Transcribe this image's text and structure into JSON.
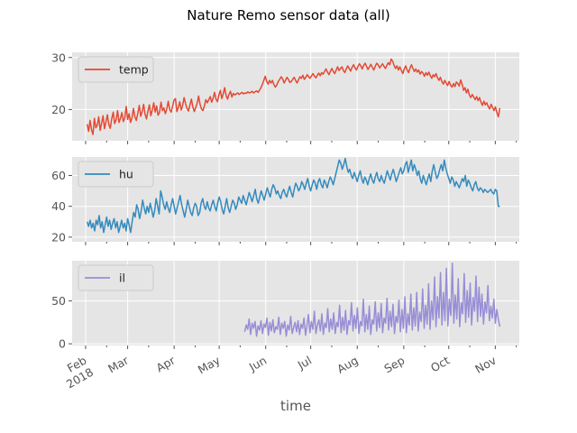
{
  "figure": {
    "title": "Nature Remo sensor data (all)",
    "xlabel": "time",
    "background": "#ffffff",
    "axes_face": "#e5e5e5",
    "grid_color": "#ffffff",
    "tick_color": "#555555"
  },
  "chart_data": {
    "type": "line",
    "title": "Nature Remo sensor data (all)",
    "xlabel": "time",
    "x_range": [
      "2018-01-23",
      "2018-11-17"
    ],
    "x_tick_labels": [
      {
        "date": "2018-02-01",
        "line1": "Feb",
        "line2": "2018"
      },
      {
        "date": "2018-03-01",
        "line1": "Mar",
        "line2": ""
      },
      {
        "date": "2018-04-01",
        "line1": "Apr",
        "line2": ""
      },
      {
        "date": "2018-05-01",
        "line1": "May",
        "line2": ""
      },
      {
        "date": "2018-06-01",
        "line1": "Jun",
        "line2": ""
      },
      {
        "date": "2018-07-01",
        "line1": "Jul",
        "line2": ""
      },
      {
        "date": "2018-08-01",
        "line1": "Aug",
        "line2": ""
      },
      {
        "date": "2018-09-01",
        "line1": "Sep",
        "line2": ""
      },
      {
        "date": "2018-10-01",
        "line1": "Oct",
        "line2": ""
      },
      {
        "date": "2018-11-01",
        "line1": "Nov",
        "line2": ""
      }
    ],
    "grid": true,
    "panels": [
      {
        "series_name": "temp",
        "color": "#e24a33",
        "ylim": [
          14,
          31
        ],
        "yticks": [
          20,
          30
        ],
        "legend": "upper-left",
        "start_date": "2018-02-02",
        "end_date": "2018-11-04",
        "daily_values": [
          17.2,
          15.8,
          17.9,
          16.1,
          15.2,
          18.3,
          16.5,
          17.0,
          18.6,
          16.0,
          17.4,
          18.8,
          16.3,
          17.6,
          19.0,
          17.1,
          16.4,
          18.2,
          19.5,
          17.3,
          18.0,
          19.8,
          17.5,
          18.3,
          19.4,
          17.7,
          18.4,
          20.6,
          18.1,
          19.2,
          17.5,
          18.4,
          20.2,
          18.6,
          17.9,
          19.3,
          20.8,
          18.7,
          19.6,
          21.0,
          19.1,
          18.2,
          19.7,
          20.9,
          18.8,
          19.9,
          21.3,
          19.5,
          20.7,
          18.9,
          19.4,
          21.4,
          19.8,
          20.3,
          19.2,
          20.1,
          21.6,
          20.0,
          19.5,
          20.6,
          21.8,
          22.1,
          19.6,
          20.4,
          21.5,
          19.9,
          20.8,
          22.3,
          21.1,
          20.2,
          19.7,
          20.9,
          22.0,
          20.5,
          19.6,
          20.4,
          21.2,
          22.6,
          21.0,
          20.1,
          19.8,
          20.7,
          21.9,
          21.3,
          21.9,
          22.5,
          21.4,
          22.2,
          23.3,
          22.0,
          21.5,
          22.8,
          23.7,
          22.1,
          23.0,
          24.2,
          22.7,
          22.0,
          22.9,
          23.5,
          22.4,
          23.1,
          22.8,
          23.0,
          23.2,
          22.9,
          23.1,
          23.3,
          23.0,
          23.2,
          23.1,
          23.4,
          23.2,
          23.3,
          23.5,
          23.2,
          23.4,
          23.6,
          23.3,
          23.7,
          24.2,
          24.8,
          25.6,
          26.4,
          25.4,
          24.9,
          25.6,
          25.1,
          25.6,
          24.8,
          24.3,
          24.7,
          25.4,
          25.8,
          26.3,
          25.9,
          25.1,
          25.6,
          26.2,
          25.8,
          25.2,
          25.4,
          25.8,
          26.2,
          25.6,
          25.1,
          25.7,
          26.3,
          26.0,
          26.6,
          25.8,
          26.2,
          26.7,
          26.3,
          26.0,
          26.5,
          26.9,
          26.4,
          26.1,
          26.6,
          27.0,
          26.5,
          27.1,
          26.8,
          27.3,
          27.8,
          27.2,
          26.7,
          27.4,
          27.9,
          27.3,
          26.9,
          27.6,
          28.2,
          27.5,
          27.9,
          28.2,
          27.5,
          27.1,
          27.8,
          28.4,
          27.9,
          27.4,
          28.1,
          28.6,
          28.0,
          27.6,
          28.3,
          28.8,
          28.4,
          27.8,
          28.5,
          28.9,
          28.3,
          27.7,
          28.2,
          28.7,
          28.1,
          27.6,
          28.3,
          28.9,
          28.6,
          28.0,
          28.4,
          28.8,
          28.3,
          27.9,
          28.5,
          29.0,
          28.6,
          29.7,
          29.3,
          28.5,
          27.9,
          28.4,
          27.6,
          28.2,
          27.5,
          26.9,
          27.8,
          28.4,
          27.6,
          27.1,
          28.0,
          28.6,
          27.9,
          27.3,
          27.8,
          27.2,
          27.6,
          26.8,
          27.3,
          27.0,
          26.4,
          27.1,
          26.6,
          27.2,
          26.5,
          26.0,
          26.7,
          26.3,
          26.9,
          26.1,
          25.6,
          26.2,
          25.4,
          24.9,
          25.6,
          25.1,
          24.6,
          25.4,
          24.7,
          24.3,
          25.0,
          24.4,
          25.3,
          25.0,
          24.5,
          25.7,
          24.9,
          23.7,
          24.2,
          23.2,
          23.9,
          22.8,
          22.3,
          22.9,
          22.4,
          21.9,
          22.5,
          21.7,
          22.3,
          21.4,
          20.8,
          21.6,
          20.9,
          21.3,
          20.6,
          20.1,
          21.0,
          20.4,
          19.8,
          20.5,
          19.4,
          18.6,
          20.3
        ]
      },
      {
        "series_name": "hu",
        "color": "#348abd",
        "ylim": [
          17,
          72
        ],
        "yticks": [
          20,
          40,
          60
        ],
        "legend": "upper-left",
        "start_date": "2018-02-02",
        "end_date": "2018-11-04",
        "daily_values": [
          30,
          27,
          31,
          26,
          29,
          24,
          31,
          28,
          34,
          26,
          30,
          23,
          28,
          33,
          27,
          31,
          25,
          29,
          32,
          26,
          30,
          23,
          27,
          31,
          26,
          29,
          24,
          32,
          28,
          23,
          30,
          36,
          33,
          41,
          38,
          32,
          37,
          44,
          39,
          35,
          40,
          36,
          42,
          38,
          33,
          37,
          45,
          40,
          35,
          50,
          46,
          41,
          38,
          43,
          39,
          36,
          41,
          45,
          40,
          35,
          39,
          43,
          47,
          41,
          37,
          33,
          38,
          44,
          40,
          36,
          34,
          39,
          42,
          40,
          34,
          36,
          42,
          45,
          40,
          38,
          43,
          39,
          37,
          41,
          44,
          40,
          37,
          42,
          46,
          43,
          38,
          35,
          40,
          45,
          39,
          36,
          40,
          44,
          42,
          38,
          41,
          46,
          44,
          42,
          47,
          44,
          41,
          45,
          49,
          46,
          43,
          47,
          51,
          45,
          42,
          46,
          50,
          47,
          44,
          48,
          52,
          49,
          46,
          51,
          54,
          52,
          48,
          50,
          47,
          45,
          49,
          51,
          48,
          46,
          50,
          53,
          49,
          46,
          51,
          55,
          53,
          50,
          52,
          56,
          54,
          51,
          55,
          58,
          53,
          50,
          54,
          57,
          55,
          51,
          56,
          58,
          54,
          52,
          57,
          55,
          52,
          56,
          59,
          57,
          54,
          58,
          62,
          66,
          70,
          68,
          64,
          67,
          71,
          66,
          62,
          64,
          60,
          58,
          62,
          59,
          56,
          60,
          63,
          58,
          55,
          59,
          57,
          54,
          58,
          61,
          57,
          55,
          59,
          62,
          58,
          56,
          60,
          57,
          55,
          59,
          63,
          60,
          57,
          61,
          64,
          60,
          56,
          59,
          62,
          65,
          61,
          63,
          67,
          69,
          62,
          66,
          70,
          63,
          67,
          64,
          60,
          63,
          58,
          55,
          60,
          57,
          54,
          58,
          61,
          56,
          63,
          67,
          62,
          58,
          60,
          64,
          67,
          63,
          70,
          65,
          61,
          58,
          55,
          59,
          57,
          53,
          56,
          54,
          52,
          55,
          58,
          56,
          60,
          53,
          57,
          55,
          52,
          50,
          54,
          56,
          52,
          50,
          52,
          51,
          49,
          51,
          50,
          49,
          50,
          51,
          49,
          48,
          51,
          50,
          40,
          40
        ]
      },
      {
        "series_name": "il",
        "color": "#988ed5",
        "ylim": [
          -2,
          97
        ],
        "yticks": [
          0,
          50
        ],
        "legend": "upper-left",
        "start_date": "2018-05-18",
        "end_date": "2018-11-04",
        "daily_values": [
          14,
          22,
          17,
          29,
          11,
          24,
          18,
          26,
          9,
          21,
          16,
          27,
          12,
          23,
          19,
          30,
          10,
          25,
          15,
          28,
          13,
          20,
          17,
          31,
          11,
          24,
          18,
          26,
          9,
          22,
          16,
          32,
          12,
          19,
          25,
          14,
          27,
          11,
          23,
          18,
          30,
          10,
          21,
          34,
          13,
          26,
          17,
          38,
          12,
          22,
          28,
          15,
          35,
          11,
          24,
          19,
          41,
          14,
          29,
          17,
          36,
          12,
          25,
          20,
          45,
          13,
          31,
          16,
          39,
          11,
          27,
          22,
          48,
          15,
          33,
          18,
          42,
          12,
          26,
          21,
          52,
          14,
          34,
          17,
          44,
          11,
          28,
          23,
          49,
          15,
          36,
          19,
          47,
          13,
          30,
          24,
          53,
          16,
          38,
          20,
          46,
          12,
          32,
          25,
          51,
          14,
          40,
          18,
          55,
          13,
          35,
          22,
          58,
          16,
          42,
          21,
          60,
          15,
          37,
          26,
          64,
          18,
          45,
          23,
          70,
          17,
          50,
          28,
          78,
          20,
          55,
          30,
          83,
          22,
          60,
          27,
          88,
          21,
          52,
          33,
          94,
          24,
          57,
          29,
          76,
          20,
          48,
          35,
          82,
          25,
          62,
          31,
          71,
          22,
          54,
          38,
          79,
          26,
          66,
          32,
          58,
          23,
          49,
          36,
          68,
          27,
          44,
          30,
          52,
          24,
          40,
          29,
          20
        ]
      }
    ]
  }
}
